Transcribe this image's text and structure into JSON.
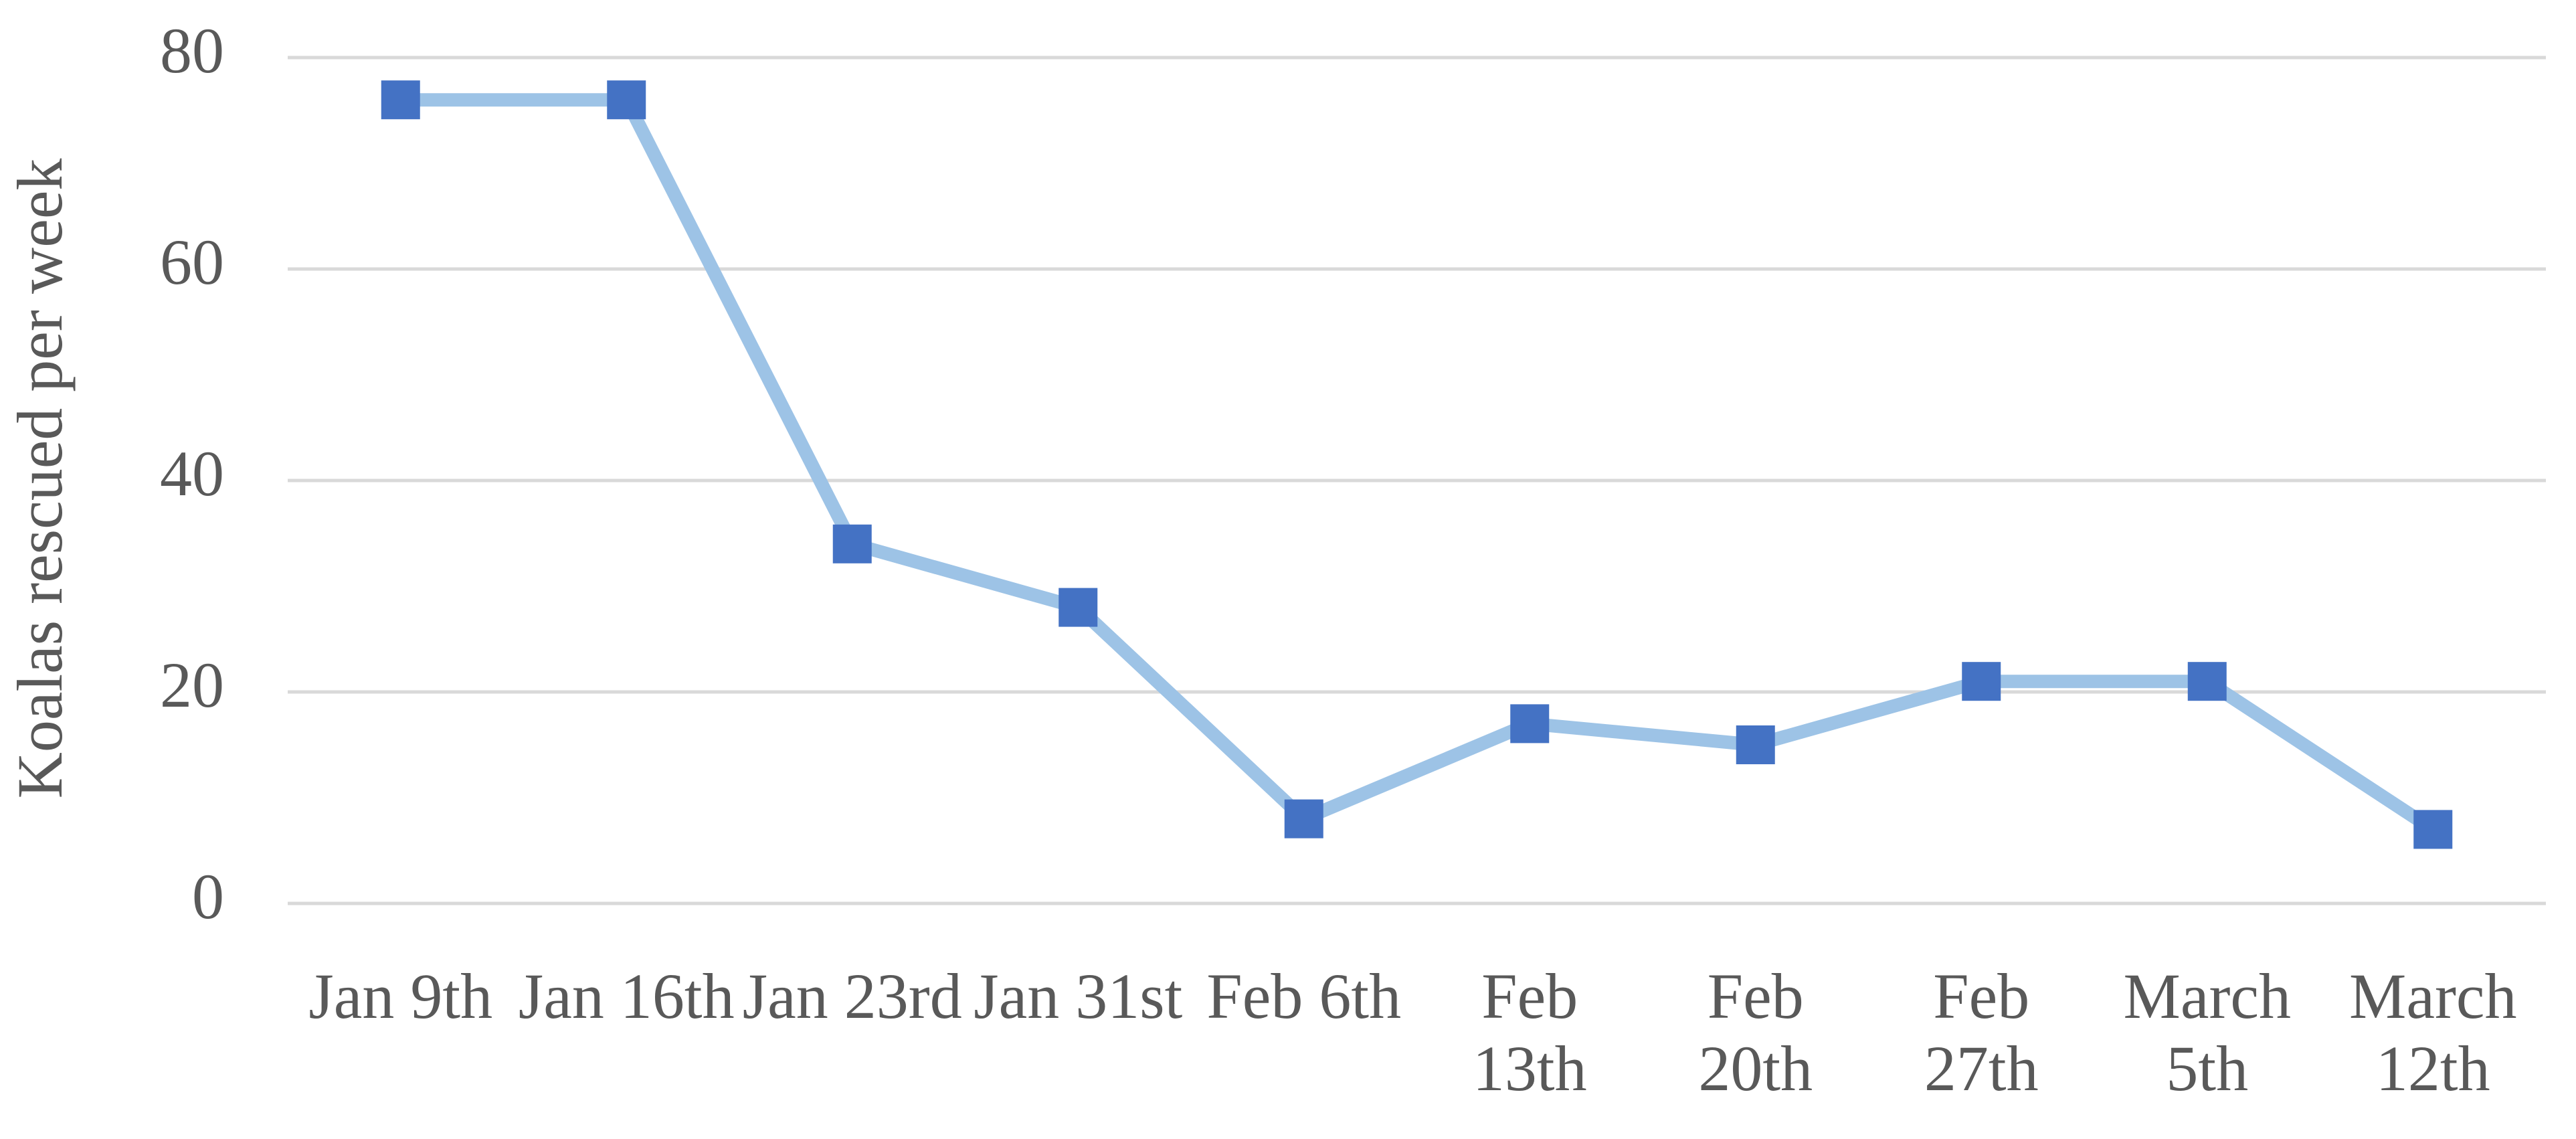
{
  "chart_data": {
    "type": "line",
    "y_label": "Koalas rescued per week",
    "categories": [
      "Jan 9th",
      "Jan 16th",
      "Jan 23rd",
      "Jan 31st",
      "Feb 6th",
      "Feb 13th",
      "Feb 20th",
      "Feb 27th",
      "March 5th",
      "March 12th"
    ],
    "series": [
      {
        "name": "Koalas rescued per week",
        "color": "#4472c4",
        "line_color": "#9dc3e6",
        "values": [
          76,
          76,
          34,
          28,
          8,
          17,
          15,
          21,
          21,
          7
        ]
      }
    ],
    "ylim": [
      0,
      80
    ],
    "yticks": [
      0,
      20,
      40,
      60,
      80
    ],
    "grid": true
  }
}
